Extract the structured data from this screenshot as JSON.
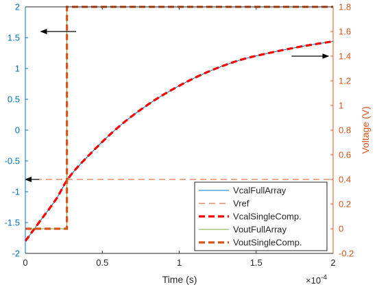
{
  "chart_data": {
    "type": "line",
    "xlabel": "Time (s)",
    "x_exponent_label": "×10",
    "x_exponent_power": "-4",
    "x_multiplier": 0.0001,
    "ylabel_left": "",
    "ylabel_right": "Voltage (V)",
    "xlim": [
      0,
      2
    ],
    "ylim_left": [
      -2,
      2
    ],
    "ylim_right": [
      -0.2,
      1.8
    ],
    "x_ticks": [
      "0",
      "0.5",
      "1",
      "1.5",
      "2"
    ],
    "y_left_ticks": [
      "-2",
      "-1.5",
      "-1",
      "-0.5",
      "0",
      "0.5",
      "1",
      "1.5",
      "2"
    ],
    "y_right_ticks": [
      "-0.2",
      "0",
      "0.2",
      "0.4",
      "0.6",
      "0.8",
      "1",
      "1.2",
      "1.4",
      "1.6",
      "1.8"
    ],
    "grid": false,
    "legend_position": "bottom-right",
    "colors": {
      "left_axis": "#0072BD",
      "right_axis": "#D95319",
      "vcal_single": "#FF0000",
      "vout_full": "#77AC30",
      "arrow": "#000000"
    },
    "series": [
      {
        "name": "VcalFullArray",
        "axis": "right",
        "style": "solid-thin",
        "color": "#0072BD",
        "x": [
          0,
          0.1,
          0.2,
          0.28,
          0.4,
          0.6,
          0.8,
          1.0,
          1.2,
          1.4,
          1.6,
          1.8,
          2.0
        ],
        "y": [
          -0.1,
          0.07,
          0.24,
          0.41,
          0.58,
          0.82,
          1.01,
          1.16,
          1.28,
          1.37,
          1.43,
          1.48,
          1.52
        ]
      },
      {
        "name": "Vref",
        "axis": "right",
        "style": "dashed-thin",
        "color": "#D95319",
        "x": [
          0,
          2
        ],
        "y": [
          0.4,
          0.4
        ]
      },
      {
        "name": "VcalSingleComp.",
        "axis": "right",
        "style": "dashed-thick",
        "color": "#FF0000",
        "x": [
          0,
          0.1,
          0.2,
          0.28,
          0.4,
          0.6,
          0.8,
          1.0,
          1.2,
          1.4,
          1.6,
          1.8,
          2.0
        ],
        "y": [
          -0.1,
          0.07,
          0.24,
          0.41,
          0.58,
          0.82,
          1.01,
          1.16,
          1.28,
          1.37,
          1.43,
          1.48,
          1.52
        ]
      },
      {
        "name": "VoutFullArray",
        "axis": "right",
        "style": "solid-thin",
        "color": "#77AC30",
        "x": [
          0,
          0.27,
          0.27,
          2.0
        ],
        "y": [
          0,
          0,
          1.8,
          1.8
        ]
      },
      {
        "name": "VoutSingleComp.",
        "axis": "right",
        "style": "dashed-thick",
        "color": "#D95319",
        "x": [
          0,
          0.27,
          0.27,
          2.0
        ],
        "y": [
          0,
          0,
          1.8,
          1.8
        ]
      }
    ],
    "annotations": [
      {
        "type": "arrow",
        "from": [
          0.33,
          1.6
        ],
        "to": [
          0.1,
          1.6
        ],
        "axis": "left"
      },
      {
        "type": "arrow",
        "from": [
          1.73,
          1.4
        ],
        "to": [
          1.97,
          1.4
        ],
        "axis": "right"
      },
      {
        "type": "arrow",
        "from": [
          0.09,
          -0.8
        ],
        "to": [
          0.0,
          -0.8
        ],
        "axis": "left"
      }
    ]
  }
}
